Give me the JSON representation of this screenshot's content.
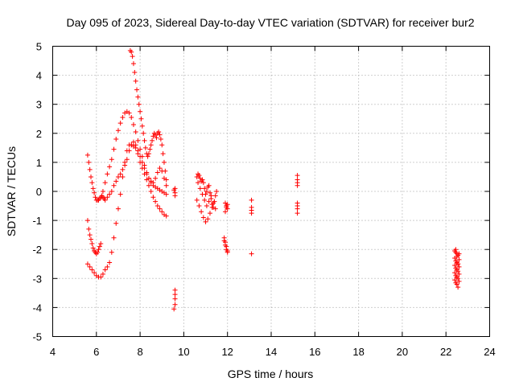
{
  "chart_data": {
    "type": "scatter",
    "title": "Day 095 of 2023, Sidereal Day-to-day VTEC variation (SDTVAR) for receiver bur2",
    "xlabel": "GPS time / hours",
    "ylabel": "SDTVAR / TECUs",
    "xlim": [
      4,
      24
    ],
    "ylim": [
      -5,
      5
    ],
    "xticks": [
      4,
      6,
      8,
      10,
      12,
      14,
      16,
      18,
      20,
      22,
      24
    ],
    "yticks": [
      -5,
      -4,
      -3,
      -2,
      -1,
      0,
      1,
      2,
      3,
      4,
      5
    ],
    "grid": true,
    "marker": "+",
    "color": "#ff0000",
    "series": [
      {
        "name": "SDTVAR",
        "x": [
          5.6,
          5.65,
          5.7,
          5.75,
          5.8,
          5.85,
          5.9,
          5.95,
          6.0,
          6.05,
          6.1,
          6.15,
          6.2,
          6.25,
          6.3,
          6.35,
          5.6,
          5.65,
          5.7,
          5.75,
          5.8,
          5.85,
          5.9,
          5.95,
          6.0,
          6.05,
          6.1,
          6.15,
          6.2,
          5.6,
          5.7,
          5.8,
          5.9,
          6.0,
          6.1,
          6.2,
          6.3,
          6.4,
          6.5,
          6.6,
          6.7,
          6.8,
          6.9,
          7.0,
          7.1,
          7.2,
          7.3,
          7.4,
          7.5,
          7.6,
          7.7,
          7.8,
          7.9,
          8.0,
          8.1,
          8.2,
          8.3,
          8.4,
          8.5,
          8.6,
          8.7,
          8.8,
          8.9,
          9.0,
          9.1,
          9.2,
          6.3,
          6.4,
          6.5,
          6.6,
          6.7,
          6.8,
          6.9,
          7.0,
          7.1,
          7.2,
          7.3,
          7.4,
          7.5,
          7.6,
          7.7,
          7.8,
          7.9,
          8.0,
          8.1,
          8.2,
          8.3,
          8.4,
          8.5,
          8.6,
          8.7,
          8.8,
          8.9,
          9.0,
          9.1,
          9.2,
          6.4,
          6.5,
          6.6,
          6.7,
          6.8,
          6.9,
          7.0,
          7.1,
          7.2,
          7.3,
          7.4,
          7.5,
          7.6,
          7.7,
          7.8,
          7.9,
          8.0,
          8.1,
          8.2,
          8.3,
          8.4,
          8.5,
          8.6,
          8.7,
          8.8,
          8.9,
          9.0,
          9.1,
          9.2,
          7.55,
          7.6,
          7.65,
          7.7,
          7.75,
          7.8,
          7.85,
          7.9,
          7.95,
          8.0,
          8.05,
          8.1,
          8.15,
          8.2,
          8.25,
          8.3,
          8.35,
          8.4,
          8.45,
          8.5,
          8.55,
          8.6,
          8.65,
          8.7,
          8.75,
          8.8,
          8.85,
          8.9,
          8.95,
          9.0,
          9.05,
          9.1,
          9.15,
          9.2,
          9.6,
          9.6,
          9.6,
          9.6,
          9.55,
          9.55,
          9.6,
          9.6,
          9.6,
          10.6,
          10.65,
          10.7,
          10.75,
          10.8,
          10.85,
          10.9,
          10.95,
          11.0,
          11.05,
          11.1,
          11.15,
          11.2,
          11.25,
          11.3,
          11.35,
          11.4,
          11.45,
          11.5,
          10.6,
          10.7,
          10.8,
          10.9,
          11.0,
          11.1,
          11.2,
          11.3,
          10.65,
          10.75,
          10.85,
          10.95,
          11.05,
          11.15,
          11.25,
          11.35,
          11.45,
          11.85,
          11.9,
          11.95,
          12.0,
          11.85,
          11.9,
          11.95,
          12.0,
          11.9,
          11.95,
          12.0,
          11.9,
          11.95,
          12.0,
          13.1,
          13.1,
          13.1,
          13.1,
          13.1,
          15.2,
          15.2,
          15.2,
          15.2,
          15.2,
          15.2,
          15.2,
          15.2,
          22.4,
          22.45,
          22.5,
          22.55,
          22.6,
          22.4,
          22.45,
          22.5,
          22.55,
          22.6,
          22.4,
          22.45,
          22.5,
          22.55,
          22.6,
          22.4,
          22.45,
          22.5,
          22.55,
          22.6,
          22.4,
          22.45,
          22.5,
          22.55,
          22.6,
          22.45,
          22.5,
          22.55
        ],
        "y": [
          1.25,
          1.0,
          0.75,
          0.5,
          0.3,
          0.1,
          -0.05,
          -0.2,
          -0.3,
          -0.3,
          -0.3,
          -0.25,
          -0.2,
          -0.15,
          -0.2,
          -0.25,
          -1.0,
          -1.3,
          -1.5,
          -1.65,
          -1.8,
          -1.95,
          -2.05,
          -2.1,
          -2.15,
          -2.1,
          -2.0,
          -1.9,
          -1.8,
          -2.5,
          -2.6,
          -2.7,
          -2.8,
          -2.9,
          -2.95,
          -2.95,
          -2.85,
          -2.7,
          -2.6,
          -2.45,
          -2.1,
          -1.6,
          -1.1,
          -0.6,
          -0.1,
          0.5,
          1.0,
          1.4,
          1.6,
          1.6,
          1.55,
          1.5,
          1.3,
          1.0,
          0.8,
          0.6,
          0.4,
          0.2,
          0.0,
          -0.2,
          -0.35,
          -0.5,
          -0.6,
          -0.7,
          -0.8,
          -0.85,
          0.0,
          0.3,
          0.6,
          0.85,
          1.1,
          1.45,
          1.8,
          2.1,
          2.35,
          2.55,
          2.7,
          2.75,
          2.7,
          2.55,
          2.3,
          2.05,
          1.75,
          1.45,
          1.2,
          0.9,
          0.65,
          0.45,
          0.3,
          0.2,
          0.15,
          0.1,
          0.05,
          0.0,
          -0.05,
          -0.1,
          -0.3,
          -0.2,
          -0.1,
          0.0,
          0.2,
          0.35,
          0.5,
          0.6,
          0.75,
          0.9,
          1.1,
          1.4,
          1.6,
          1.7,
          1.6,
          1.4,
          1.2,
          1.0,
          0.8,
          0.6,
          0.45,
          0.35,
          0.3,
          0.45,
          0.65,
          0.8,
          0.7,
          0.45,
          0.2,
          4.85,
          4.8,
          4.65,
          4.4,
          4.1,
          3.8,
          3.5,
          3.25,
          3.0,
          2.75,
          2.5,
          2.25,
          2.0,
          1.75,
          1.5,
          1.3,
          1.2,
          1.3,
          1.45,
          1.6,
          1.75,
          1.9,
          2.0,
          1.95,
          1.85,
          2.0,
          2.05,
          1.95,
          1.8,
          1.6,
          1.3,
          1.0,
          0.7,
          0.4,
          -3.4,
          -3.55,
          -3.7,
          -3.9,
          -4.05,
          0.05,
          -0.05,
          -0.15,
          0.1,
          0.5,
          0.6,
          0.55,
          0.45,
          0.35,
          0.4,
          0.3,
          0.1,
          -0.1,
          0.0,
          0.15,
          0.2,
          -0.05,
          -0.25,
          -0.45,
          -0.55,
          -0.35,
          -0.15,
          0.0,
          -0.3,
          -0.5,
          -0.7,
          -0.9,
          -1.05,
          -0.95,
          -0.75,
          -0.55,
          0.3,
          0.1,
          -0.1,
          -0.3,
          -0.5,
          -0.35,
          -0.15,
          -0.4,
          -0.6,
          -1.7,
          -1.85,
          -2.0,
          -2.1,
          -1.6,
          -1.75,
          -1.9,
          -2.05,
          -0.4,
          -0.5,
          -0.6,
          -0.7,
          -0.55,
          -0.45,
          -0.3,
          -0.55,
          -0.65,
          -0.75,
          -2.15,
          0.55,
          0.4,
          0.3,
          0.2,
          -0.4,
          -0.5,
          -0.6,
          -0.75,
          -2.05,
          -2.1,
          -2.15,
          -2.2,
          -2.15,
          -2.3,
          -2.4,
          -2.45,
          -2.5,
          -2.35,
          -2.55,
          -2.65,
          -2.7,
          -2.75,
          -2.6,
          -2.8,
          -2.9,
          -2.95,
          -3.0,
          -2.85,
          -3.05,
          -3.15,
          -3.2,
          -3.3,
          -3.1,
          -2.0,
          -2.25,
          -2.5
        ]
      }
    ]
  }
}
